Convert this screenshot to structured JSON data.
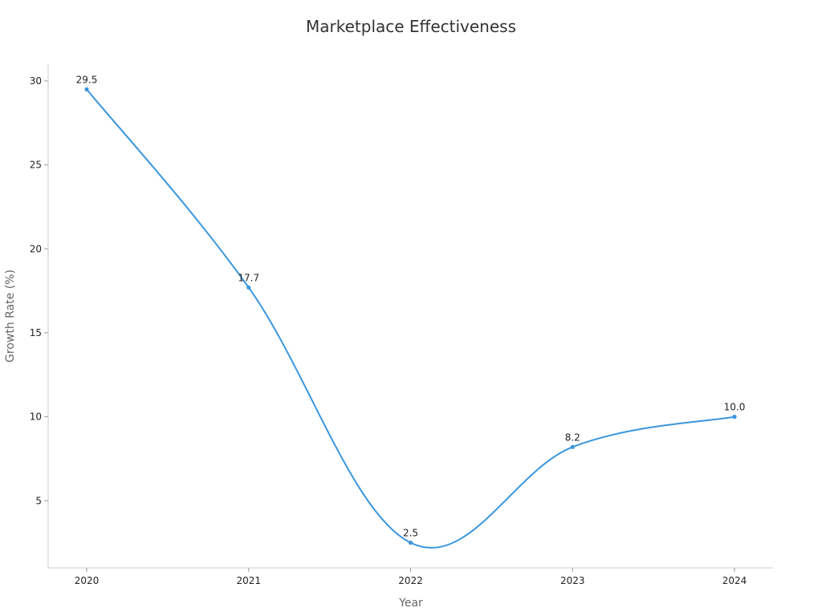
{
  "chart_data": {
    "type": "line",
    "title": "Marketplace Effectiveness",
    "xlabel": "Year",
    "ylabel": "Growth Rate (%)",
    "categories": [
      "2020",
      "2021",
      "2022",
      "2023",
      "2024"
    ],
    "series": [
      {
        "name": "Growth Rate",
        "values": [
          29.5,
          17.7,
          2.5,
          8.2,
          10.0
        ],
        "labels": [
          "29.5",
          "17.7",
          "2.5",
          "8.2",
          "10.0"
        ]
      }
    ],
    "yticks": [
      5,
      10,
      15,
      20,
      25,
      30
    ],
    "ylim": [
      1,
      31
    ],
    "grid": false,
    "legend": "none",
    "line_color": "#3a96dd"
  }
}
